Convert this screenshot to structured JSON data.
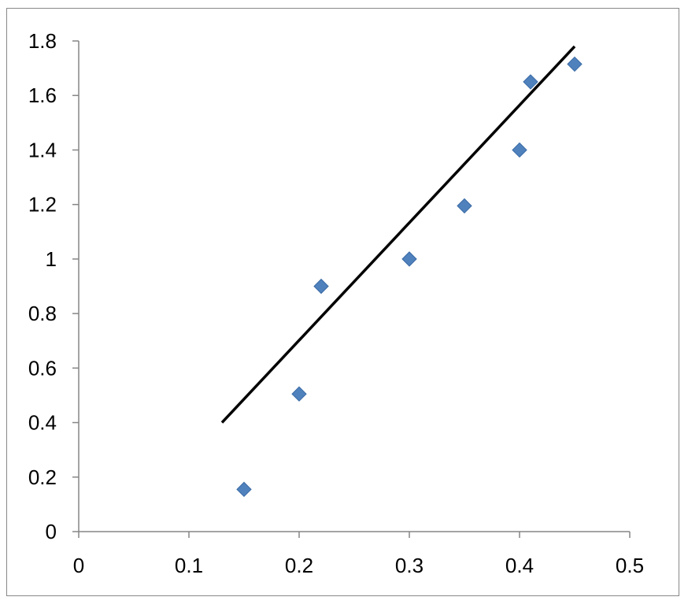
{
  "chart_data": {
    "type": "scatter",
    "title": "",
    "xlabel": "",
    "ylabel": "",
    "xlim": [
      0,
      0.5
    ],
    "ylim": [
      0,
      1.8
    ],
    "x_ticks": [
      "0",
      "0.1",
      "0.2",
      "0.3",
      "0.4",
      "0.5"
    ],
    "y_ticks": [
      "0",
      "0.2",
      "0.4",
      "0.6",
      "0.8",
      "1",
      "1.2",
      "1.4",
      "1.6",
      "1.8"
    ],
    "grid": false,
    "legend": "none",
    "series": [
      {
        "marker": "diamond",
        "color": "#4F81BD",
        "points": [
          {
            "x": 0.15,
            "y": 0.155
          },
          {
            "x": 0.2,
            "y": 0.505
          },
          {
            "x": 0.22,
            "y": 0.9
          },
          {
            "x": 0.3,
            "y": 1.0
          },
          {
            "x": 0.35,
            "y": 1.195
          },
          {
            "x": 0.4,
            "y": 1.4
          },
          {
            "x": 0.41,
            "y": 1.65
          },
          {
            "x": 0.45,
            "y": 1.715
          }
        ]
      }
    ],
    "trendline": {
      "color": "#000000",
      "points": [
        {
          "x": 0.13,
          "y": 0.4
        },
        {
          "x": 0.45,
          "y": 1.78
        }
      ]
    }
  }
}
